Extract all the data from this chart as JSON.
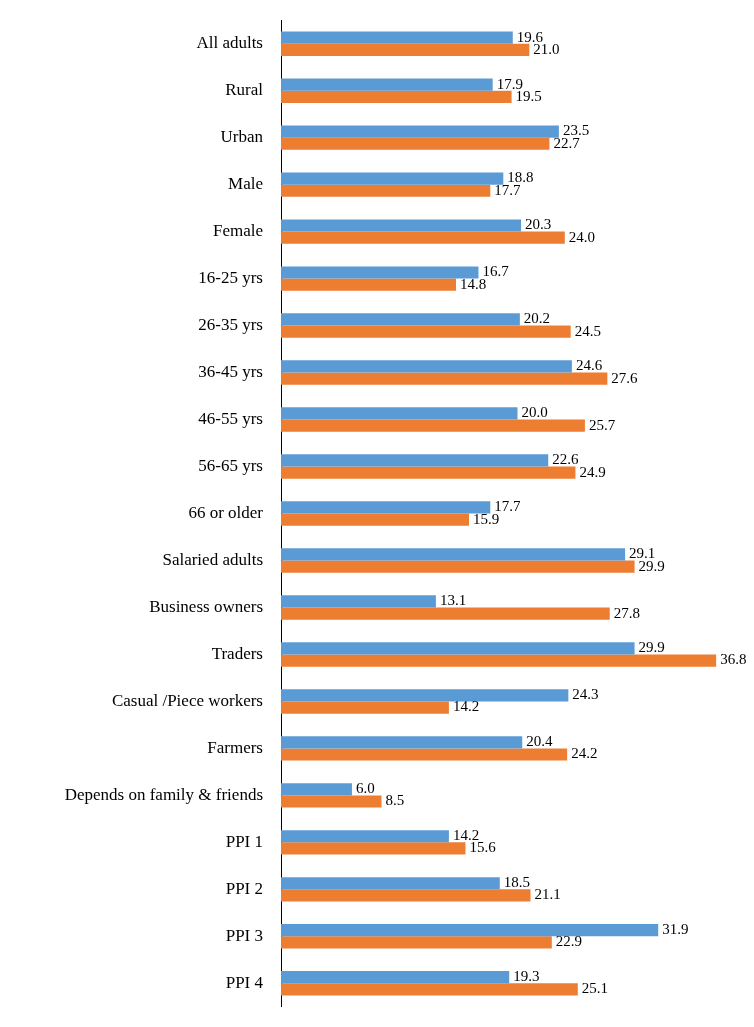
{
  "chart_data": {
    "type": "bar",
    "orientation": "horizontal",
    "categories": [
      "All adults",
      "Rural",
      "Urban",
      "Male",
      "Female",
      "16-25 yrs",
      "26-35 yrs",
      "36-45 yrs",
      "46-55 yrs",
      "56-65 yrs",
      "66 or older",
      "Salaried adults",
      "Business owners",
      "Traders",
      "Casual /Piece workers",
      "Farmers",
      "Depends on family & friends",
      "PPI 1",
      "PPI 2",
      "PPI 3",
      "PPI 4"
    ],
    "tick_labels": "y",
    "series": [
      {
        "color": "#5b9bd5",
        "values": [
          19.6,
          17.9,
          23.5,
          18.8,
          20.3,
          16.7,
          20.2,
          24.6,
          20.0,
          22.6,
          17.7,
          29.1,
          13.1,
          29.9,
          24.3,
          20.4,
          6.0,
          14.2,
          18.5,
          31.9,
          19.3
        ],
        "value_labels": [
          "19.6",
          "17.9",
          "23.5",
          "18.8",
          "20.3",
          "16.7",
          "20.2",
          "24.6",
          "20.0",
          "22.6",
          "17.7",
          "29.1",
          "13.1",
          "29.9",
          "24.3",
          "20.4",
          "6.0",
          "14.2",
          "18.5",
          "31.9",
          "19.3"
        ]
      },
      {
        "color": "#ed7d31",
        "values": [
          21.0,
          19.5,
          22.7,
          17.7,
          24.0,
          14.8,
          24.5,
          27.6,
          25.7,
          24.9,
          15.9,
          29.9,
          27.8,
          36.8,
          14.2,
          24.2,
          8.5,
          15.6,
          21.1,
          22.9,
          25.1
        ],
        "value_labels": [
          "21.0",
          "19.5",
          "22.7",
          "17.7",
          "24.0",
          "14.8",
          "24.5",
          "27.6",
          "25.7",
          "24.9",
          "15.9",
          "29.9",
          "27.8",
          "36.8",
          "14.2",
          "24.2",
          "8.5",
          "15.6",
          "21.1",
          "22.9",
          "25.1"
        ]
      }
    ]
  }
}
